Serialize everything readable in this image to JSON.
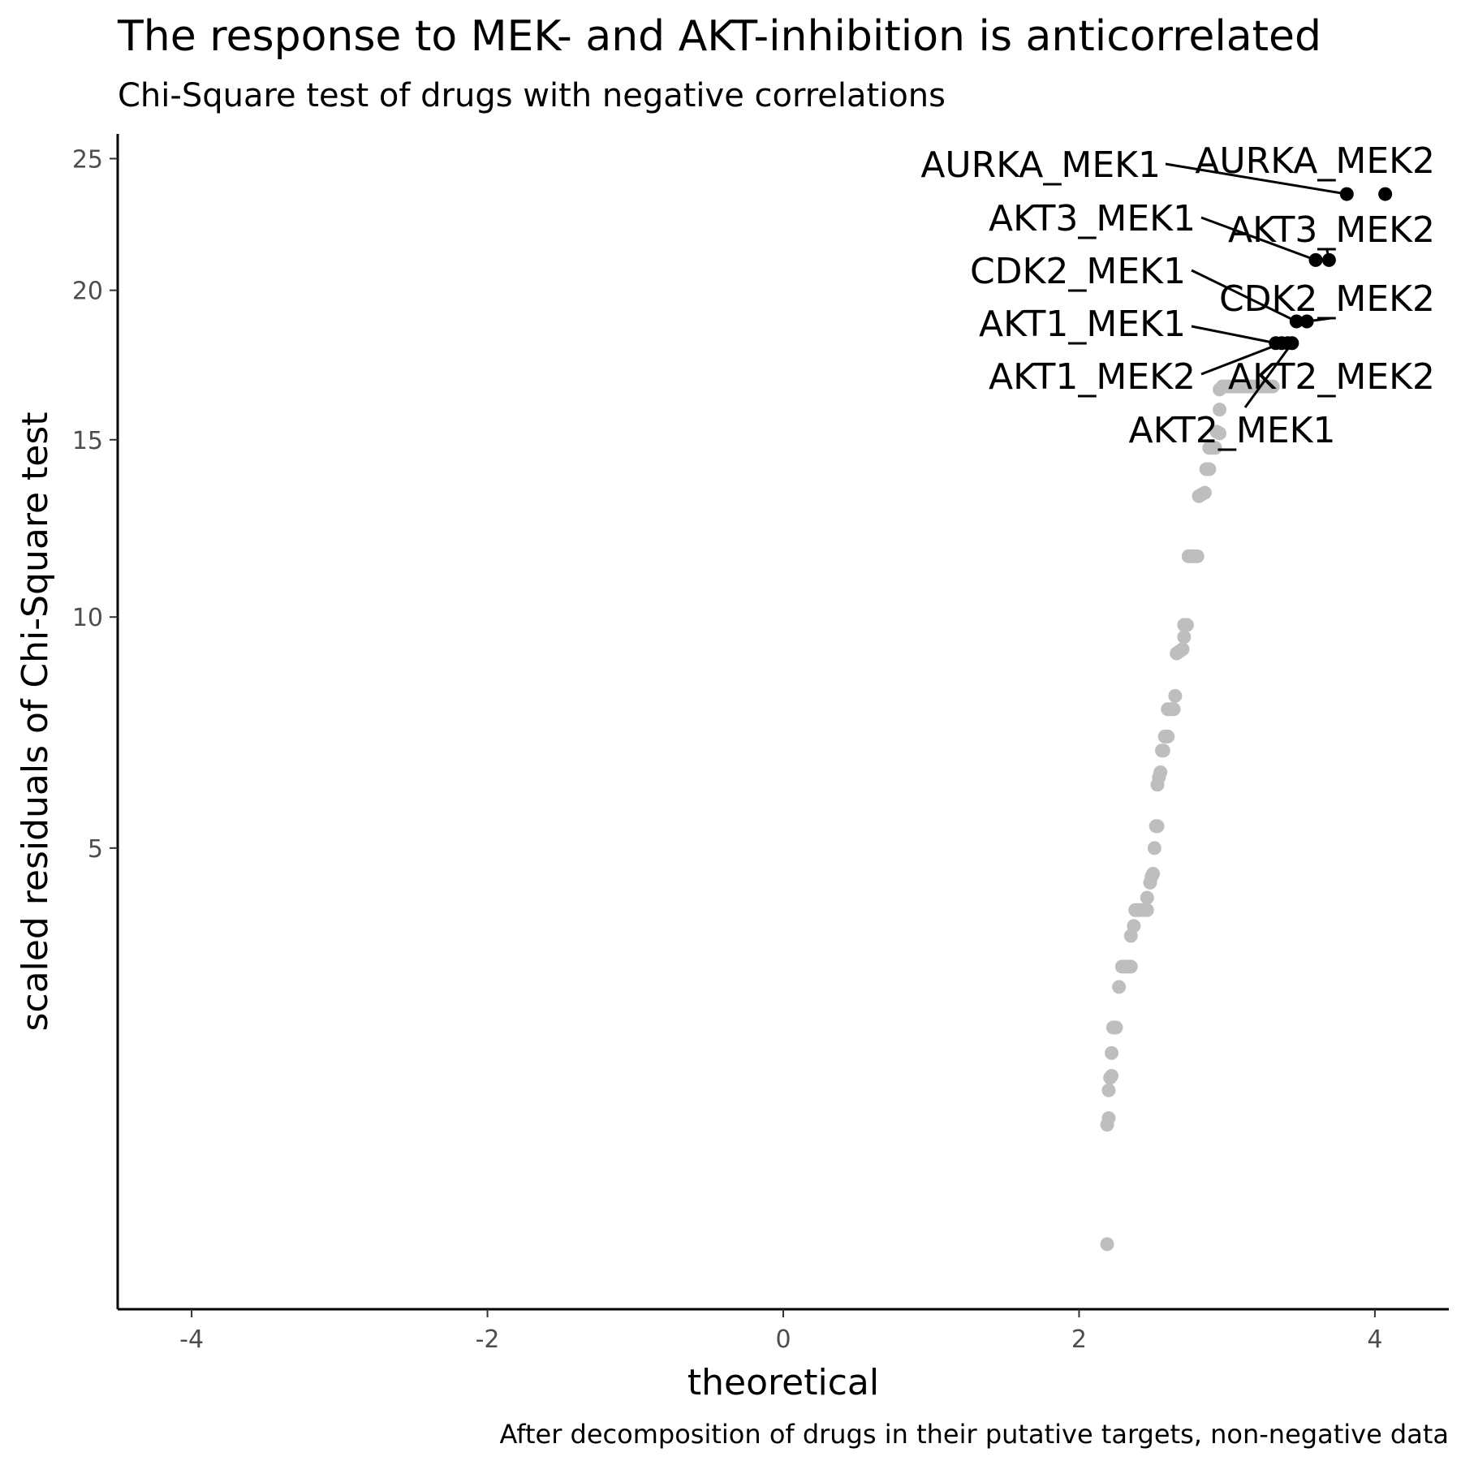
{
  "chart_data": {
    "type": "scatter",
    "title": "The response to MEK- and AKT-inhibition is anticorrelated",
    "subtitle": "Chi-Square test of drugs with negative correlations",
    "xlabel": "theoretical",
    "ylabel": "scaled residuals of Chi-Square test",
    "caption": "After decomposition of drugs in their putative targets, non-negative data",
    "xlim": [
      -4.5,
      4.5
    ],
    "ylim": [
      0.15,
      26.0
    ],
    "y_scale": "sqrt",
    "grid": false,
    "legend": "none",
    "x_ticks": [
      {
        "value": -4,
        "label": "-4"
      },
      {
        "value": -2,
        "label": "-2"
      },
      {
        "value": 0,
        "label": "0"
      },
      {
        "value": 2,
        "label": "2"
      },
      {
        "value": 4,
        "label": "4"
      }
    ],
    "y_ticks": [
      {
        "value": 5,
        "label": "5"
      },
      {
        "value": 10,
        "label": "10"
      },
      {
        "value": 15,
        "label": "15"
      },
      {
        "value": 20,
        "label": "20"
      },
      {
        "value": 25,
        "label": "25"
      }
    ],
    "colors": {
      "background_points": "#bebebe",
      "highlight_points": "#000000"
    },
    "background_points": [
      {
        "x": 2.19,
        "y": 0.42
      },
      {
        "x": 2.19,
        "y": 1.27
      },
      {
        "x": 2.2,
        "y": 1.33
      },
      {
        "x": 2.2,
        "y": 1.6
      },
      {
        "x": 2.21,
        "y": 1.73
      },
      {
        "x": 2.22,
        "y": 1.75
      },
      {
        "x": 2.22,
        "y": 2.0
      },
      {
        "x": 2.23,
        "y": 2.3
      },
      {
        "x": 2.24,
        "y": 2.3
      },
      {
        "x": 2.25,
        "y": 2.3
      },
      {
        "x": 2.27,
        "y": 2.82
      },
      {
        "x": 2.29,
        "y": 3.1
      },
      {
        "x": 2.31,
        "y": 3.1
      },
      {
        "x": 2.33,
        "y": 3.1
      },
      {
        "x": 2.35,
        "y": 3.1
      },
      {
        "x": 2.35,
        "y": 3.55
      },
      {
        "x": 2.37,
        "y": 3.7
      },
      {
        "x": 2.38,
        "y": 3.95
      },
      {
        "x": 2.4,
        "y": 3.95
      },
      {
        "x": 2.42,
        "y": 3.95
      },
      {
        "x": 2.44,
        "y": 3.95
      },
      {
        "x": 2.46,
        "y": 3.95
      },
      {
        "x": 2.46,
        "y": 4.15
      },
      {
        "x": 2.48,
        "y": 4.4
      },
      {
        "x": 2.49,
        "y": 4.5
      },
      {
        "x": 2.5,
        "y": 4.55
      },
      {
        "x": 2.51,
        "y": 5.0
      },
      {
        "x": 2.52,
        "y": 5.4
      },
      {
        "x": 2.53,
        "y": 5.4
      },
      {
        "x": 2.53,
        "y": 6.2
      },
      {
        "x": 2.54,
        "y": 6.35
      },
      {
        "x": 2.55,
        "y": 6.45
      },
      {
        "x": 2.56,
        "y": 6.9
      },
      {
        "x": 2.57,
        "y": 6.9
      },
      {
        "x": 2.58,
        "y": 7.2
      },
      {
        "x": 2.59,
        "y": 7.2
      },
      {
        "x": 2.6,
        "y": 7.2
      },
      {
        "x": 2.6,
        "y": 7.8
      },
      {
        "x": 2.62,
        "y": 7.8
      },
      {
        "x": 2.64,
        "y": 7.8
      },
      {
        "x": 2.65,
        "y": 8.1
      },
      {
        "x": 2.66,
        "y": 9.1
      },
      {
        "x": 2.68,
        "y": 9.15
      },
      {
        "x": 2.7,
        "y": 9.2
      },
      {
        "x": 2.71,
        "y": 9.5
      },
      {
        "x": 2.71,
        "y": 9.8
      },
      {
        "x": 2.73,
        "y": 9.8
      },
      {
        "x": 2.74,
        "y": 11.6
      },
      {
        "x": 2.76,
        "y": 11.6
      },
      {
        "x": 2.78,
        "y": 11.6
      },
      {
        "x": 2.8,
        "y": 11.6
      },
      {
        "x": 2.81,
        "y": 13.3
      },
      {
        "x": 2.83,
        "y": 13.35
      },
      {
        "x": 2.85,
        "y": 13.4
      },
      {
        "x": 2.86,
        "y": 14.1
      },
      {
        "x": 2.88,
        "y": 14.1
      },
      {
        "x": 2.88,
        "y": 14.75
      },
      {
        "x": 2.9,
        "y": 14.75
      },
      {
        "x": 2.92,
        "y": 14.75
      },
      {
        "x": 2.93,
        "y": 15.25
      },
      {
        "x": 2.95,
        "y": 15.2
      },
      {
        "x": 2.95,
        "y": 15.95
      },
      {
        "x": 2.95,
        "y": 16.6
      },
      {
        "x": 2.97,
        "y": 16.7
      },
      {
        "x": 2.99,
        "y": 16.7
      },
      {
        "x": 3.01,
        "y": 16.7
      },
      {
        "x": 3.03,
        "y": 16.7
      },
      {
        "x": 3.05,
        "y": 16.7
      },
      {
        "x": 3.07,
        "y": 16.7
      },
      {
        "x": 3.09,
        "y": 16.7
      },
      {
        "x": 3.11,
        "y": 16.7
      },
      {
        "x": 3.13,
        "y": 16.7
      },
      {
        "x": 3.15,
        "y": 16.7
      },
      {
        "x": 3.17,
        "y": 16.7
      },
      {
        "x": 3.19,
        "y": 16.7
      },
      {
        "x": 3.21,
        "y": 16.7
      },
      {
        "x": 3.23,
        "y": 16.7
      },
      {
        "x": 3.25,
        "y": 16.7
      },
      {
        "x": 3.27,
        "y": 16.7
      },
      {
        "x": 3.29,
        "y": 16.7
      },
      {
        "x": 3.31,
        "y": 16.7
      }
    ],
    "highlight_points": [
      {
        "label": "AURKA_MEK1",
        "x": 3.81,
        "y": 23.6
      },
      {
        "label": "AURKA_MEK2",
        "x": 4.07,
        "y": 23.6
      },
      {
        "label": "AKT3_MEK1",
        "x": 3.6,
        "y": 21.1
      },
      {
        "label": "AKT3_MEK2",
        "x": 3.69,
        "y": 21.1
      },
      {
        "label": "CDK2_MEK1",
        "x": 3.47,
        "y": 18.9
      },
      {
        "label": "CDK2_MEK2",
        "x": 3.54,
        "y": 18.9
      },
      {
        "label": "AKT1_MEK1",
        "x": 3.33,
        "y": 18.15
      },
      {
        "label": "AKT1_MEK2",
        "x": 3.37,
        "y": 18.15
      },
      {
        "label": "AKT2_MEK2",
        "x": 3.41,
        "y": 18.15
      },
      {
        "label": "AKT2_MEK1",
        "x": 3.44,
        "y": 18.15
      }
    ]
  }
}
